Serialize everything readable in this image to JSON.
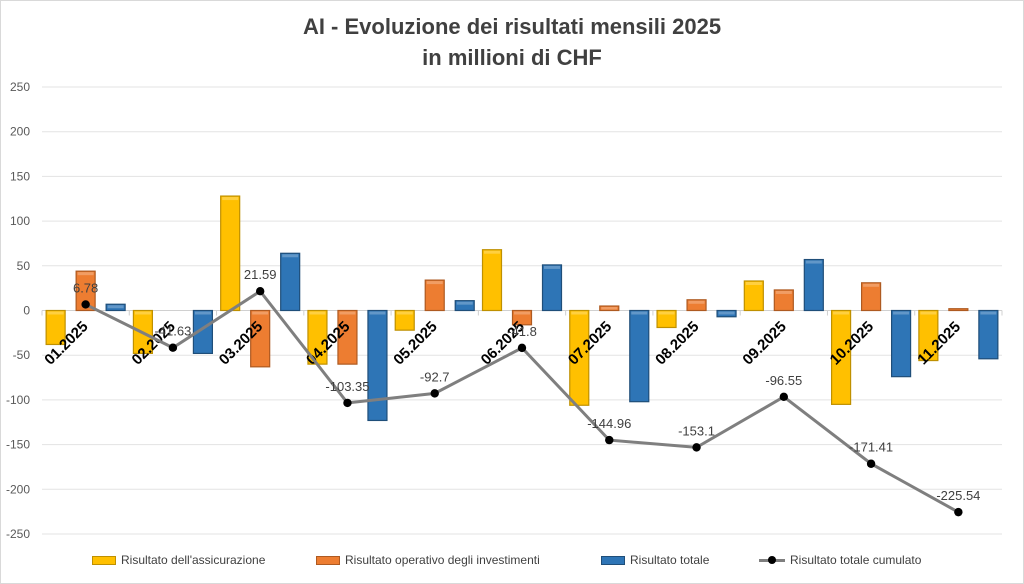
{
  "chart_data": {
    "type": "bar",
    "title": "AI - Evoluzione dei risultati mensili 2025",
    "subtitle": "in millioni di CHF",
    "xlabel": "",
    "ylabel": "",
    "ylim": [
      -250,
      250
    ],
    "yticks": [
      250,
      200,
      150,
      100,
      50,
      0,
      -50,
      -100,
      -150,
      -200,
      -250
    ],
    "grid": true,
    "legend_position": "bottom",
    "categories": [
      "01.2025",
      "02.2025",
      "03.2025",
      "04.2025",
      "05.2025",
      "06.2025",
      "07.2025",
      "08.2025",
      "09.2025",
      "10.2025",
      "11.2025"
    ],
    "series": [
      {
        "name": "Risultato dell'assicurazione",
        "type": "bar",
        "color": "#FFC000",
        "edge": "#BF9000",
        "values": [
          -38,
          -48,
          128,
          -60,
          -22,
          68,
          -106,
          -19,
          33,
          -105,
          -56
        ]
      },
      {
        "name": "Risultato operativo degli investimenti",
        "type": "bar",
        "color": "#ED7D31",
        "edge": "#AE5A21",
        "values": [
          44,
          0,
          -63,
          -60,
          34,
          -16,
          5,
          12,
          23,
          31,
          2
        ]
      },
      {
        "name": "Risultato totale",
        "type": "bar",
        "color": "#2E75B6",
        "edge": "#1F4E79",
        "values": [
          7,
          -48,
          64,
          -123,
          11,
          51,
          -102,
          -7,
          57,
          -74,
          -54
        ]
      },
      {
        "name": "Risultato totale cumulato",
        "type": "line",
        "color": "#7F7F7F",
        "marker": "#000000",
        "values": [
          6.78,
          -41.63,
          21.59,
          -103.35,
          -92.7,
          -41.8,
          -144.96,
          -153.1,
          -96.55,
          -171.41,
          -225.54
        ],
        "labels": [
          "6.78",
          "-41.63",
          "21.59",
          "-103.35",
          "-92.7",
          "-41.8",
          "-144.96",
          "-153.1",
          "-96.55",
          "-171.41",
          "-225.54"
        ]
      }
    ]
  }
}
